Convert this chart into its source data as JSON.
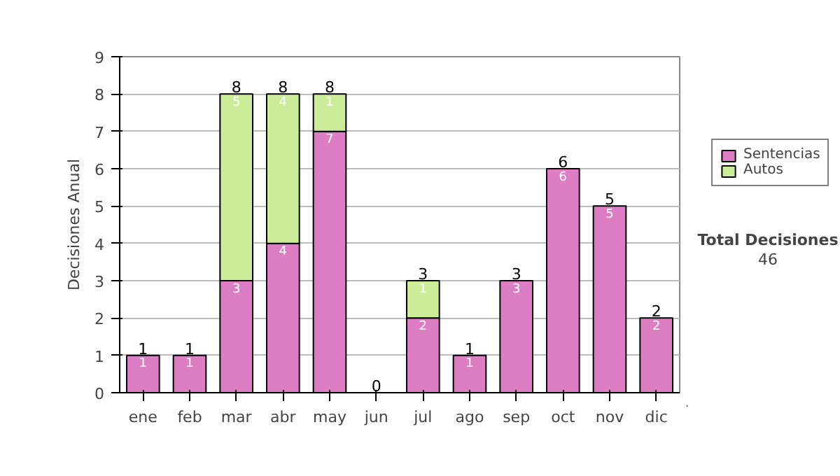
{
  "chart_data": {
    "type": "bar",
    "stacked": true,
    "ylabel": "Decisiones Anual",
    "categories": [
      "ene",
      "feb",
      "mar",
      "abr",
      "may",
      "jun",
      "jul",
      "ago",
      "sep",
      "oct",
      "nov",
      "dic"
    ],
    "series": [
      {
        "name": "Sentencias",
        "color": "#dd7ec4",
        "values": [
          1,
          1,
          3,
          4,
          7,
          0,
          2,
          1,
          3,
          6,
          5,
          2
        ],
        "value_labels": [
          "1",
          "1",
          "3",
          "4",
          "7",
          null,
          "2",
          "1",
          "3",
          "6",
          "5",
          "2"
        ]
      },
      {
        "name": "Autos",
        "color": "#ccec9a",
        "values": [
          0,
          0,
          5,
          4,
          1,
          0,
          1,
          0,
          0,
          0,
          0,
          0
        ],
        "value_labels": [
          null,
          null,
          "5",
          "4",
          "1",
          null,
          "1",
          null,
          null,
          null,
          null,
          null
        ]
      }
    ],
    "ylim": [
      0,
      9
    ],
    "yticks": [
      0,
      1,
      2,
      3,
      4,
      5,
      6,
      7,
      8,
      9
    ],
    "grid": "y",
    "legend": "right",
    "totals": [
      "1",
      "1",
      "8",
      "8",
      "8",
      "0",
      "3",
      "1",
      "3",
      "6",
      "5",
      "2"
    ],
    "annotations": [
      "Total Decisiones",
      "46"
    ]
  }
}
